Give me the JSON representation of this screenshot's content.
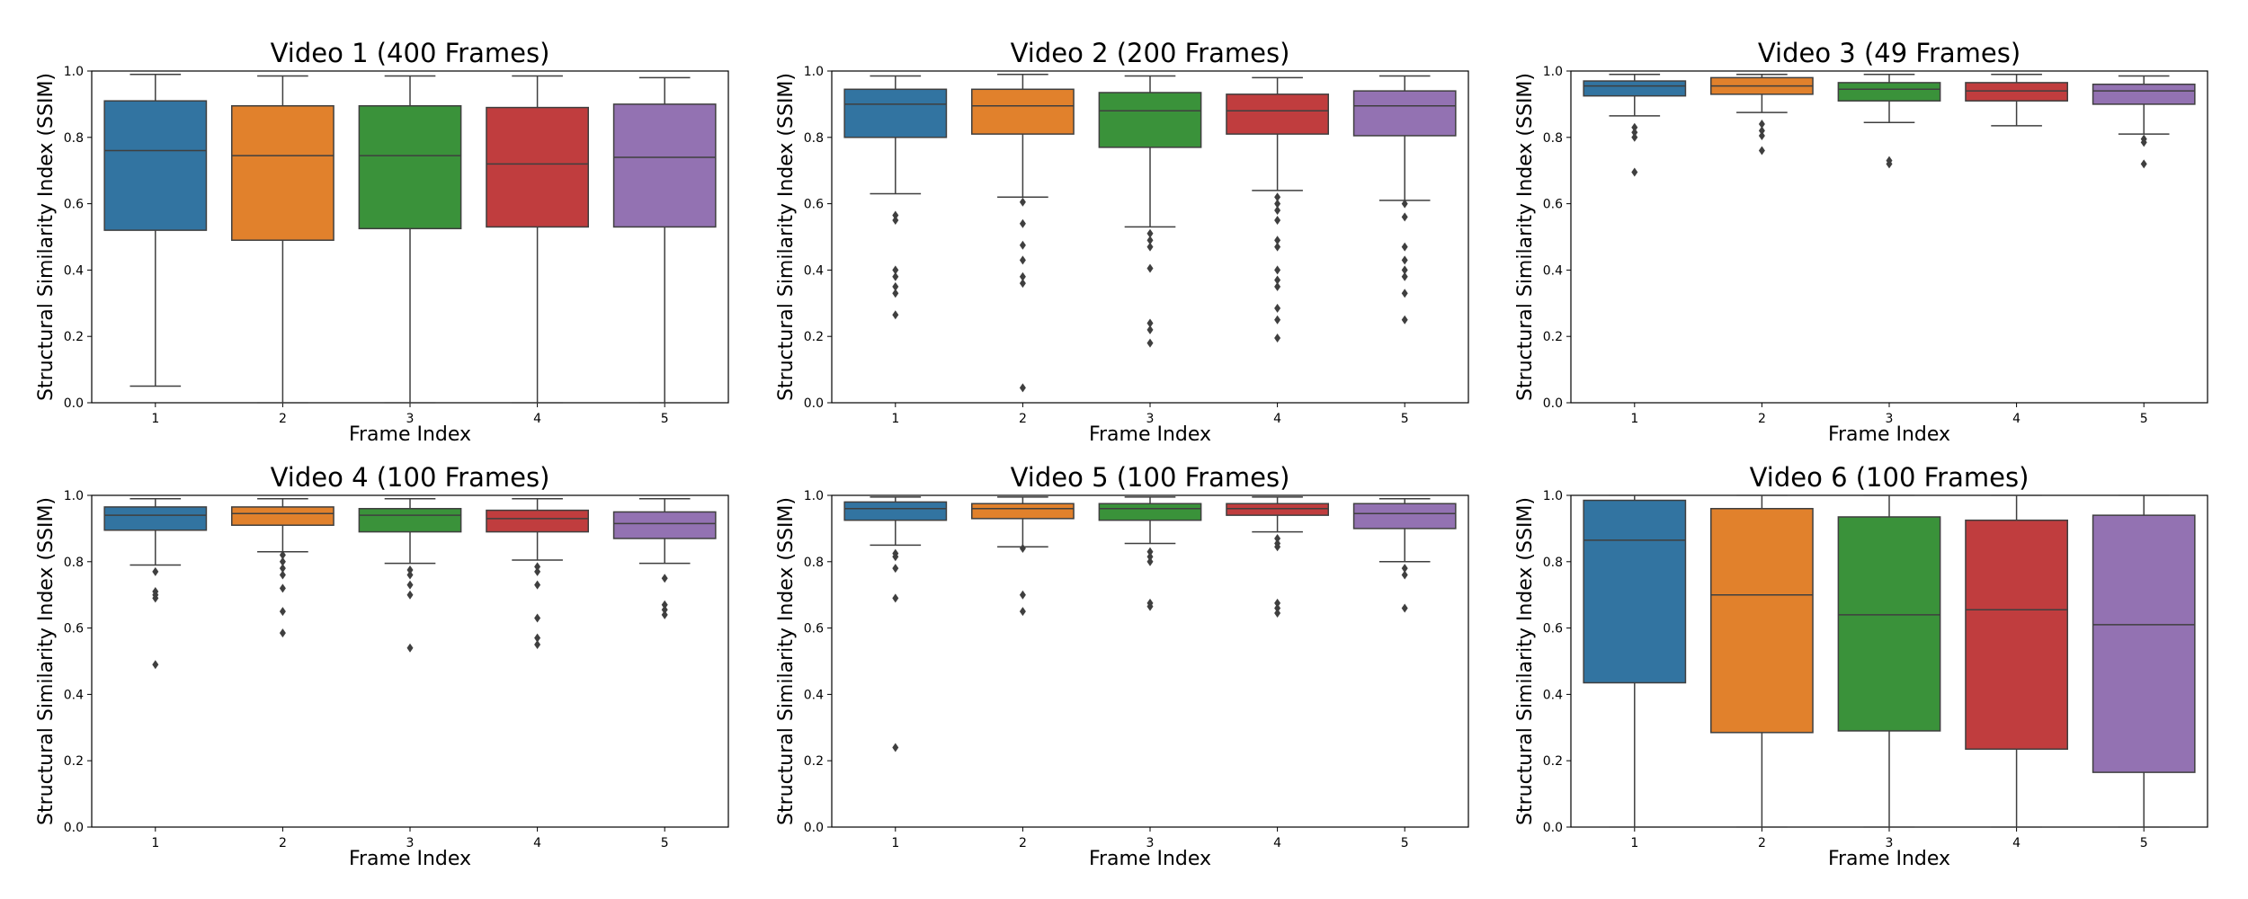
{
  "chart_data": [
    {
      "type": "box",
      "title": "Video 1 (400 Frames)",
      "xlabel": "Frame Index",
      "ylabel": "Structural Similarity Index (SSIM)",
      "categories": [
        "1",
        "2",
        "3",
        "4",
        "5"
      ],
      "ylim": [
        0.0,
        1.0
      ],
      "yticks": [
        "0.0",
        "0.2",
        "0.4",
        "0.6",
        "0.8",
        "1.0"
      ],
      "boxes": [
        {
          "whislo": 0.05,
          "q1": 0.52,
          "med": 0.76,
          "q3": 0.91,
          "whishi": 0.99,
          "fliers": []
        },
        {
          "whislo": 0.0,
          "q1": 0.49,
          "med": 0.745,
          "q3": 0.895,
          "whishi": 0.985,
          "fliers": []
        },
        {
          "whislo": 0.0,
          "q1": 0.525,
          "med": 0.745,
          "q3": 0.895,
          "whishi": 0.985,
          "fliers": []
        },
        {
          "whislo": 0.0,
          "q1": 0.53,
          "med": 0.72,
          "q3": 0.89,
          "whishi": 0.985,
          "fliers": []
        },
        {
          "whislo": 0.0,
          "q1": 0.53,
          "med": 0.74,
          "q3": 0.9,
          "whishi": 0.98,
          "fliers": []
        }
      ]
    },
    {
      "type": "box",
      "title": "Video 2 (200 Frames)",
      "xlabel": "Frame Index",
      "ylabel": "Structural Similarity Index (SSIM)",
      "categories": [
        "1",
        "2",
        "3",
        "4",
        "5"
      ],
      "ylim": [
        0.0,
        1.0
      ],
      "yticks": [
        "0.0",
        "0.2",
        "0.4",
        "0.6",
        "0.8",
        "1.0"
      ],
      "boxes": [
        {
          "whislo": 0.63,
          "q1": 0.8,
          "med": 0.9,
          "q3": 0.945,
          "whishi": 0.985,
          "fliers": [
            0.565,
            0.55,
            0.4,
            0.38,
            0.35,
            0.33,
            0.265
          ]
        },
        {
          "whislo": 0.62,
          "q1": 0.81,
          "med": 0.895,
          "q3": 0.945,
          "whishi": 0.99,
          "fliers": [
            0.605,
            0.54,
            0.475,
            0.43,
            0.38,
            0.36,
            0.045
          ]
        },
        {
          "whislo": 0.53,
          "q1": 0.77,
          "med": 0.88,
          "q3": 0.935,
          "whishi": 0.985,
          "fliers": [
            0.51,
            0.49,
            0.47,
            0.405,
            0.24,
            0.22,
            0.18
          ]
        },
        {
          "whislo": 0.64,
          "q1": 0.81,
          "med": 0.88,
          "q3": 0.93,
          "whishi": 0.98,
          "fliers": [
            0.62,
            0.6,
            0.58,
            0.55,
            0.49,
            0.47,
            0.4,
            0.37,
            0.35,
            0.285,
            0.25,
            0.195
          ]
        },
        {
          "whislo": 0.61,
          "q1": 0.805,
          "med": 0.895,
          "q3": 0.94,
          "whishi": 0.985,
          "fliers": [
            0.6,
            0.56,
            0.47,
            0.43,
            0.4,
            0.38,
            0.33,
            0.25
          ]
        }
      ]
    },
    {
      "type": "box",
      "title": "Video 3 (49 Frames)",
      "xlabel": "Frame Index",
      "ylabel": "Structural Similarity Index (SSIM)",
      "categories": [
        "1",
        "2",
        "3",
        "4",
        "5"
      ],
      "ylim": [
        0.0,
        1.0
      ],
      "yticks": [
        "0.0",
        "0.2",
        "0.4",
        "0.6",
        "0.8",
        "1.0"
      ],
      "boxes": [
        {
          "whislo": 0.865,
          "q1": 0.925,
          "med": 0.955,
          "q3": 0.97,
          "whishi": 0.99,
          "fliers": [
            0.83,
            0.815,
            0.8,
            0.695
          ]
        },
        {
          "whislo": 0.875,
          "q1": 0.93,
          "med": 0.955,
          "q3": 0.98,
          "whishi": 0.99,
          "fliers": [
            0.84,
            0.82,
            0.805,
            0.76
          ]
        },
        {
          "whislo": 0.845,
          "q1": 0.91,
          "med": 0.945,
          "q3": 0.965,
          "whishi": 0.99,
          "fliers": [
            0.73,
            0.72
          ]
        },
        {
          "whislo": 0.835,
          "q1": 0.91,
          "med": 0.94,
          "q3": 0.965,
          "whishi": 0.99,
          "fliers": []
        },
        {
          "whislo": 0.81,
          "q1": 0.9,
          "med": 0.94,
          "q3": 0.96,
          "whishi": 0.985,
          "fliers": [
            0.795,
            0.785,
            0.72
          ]
        }
      ]
    },
    {
      "type": "box",
      "title": "Video 4 (100 Frames)",
      "xlabel": "Frame Index",
      "ylabel": "Structural Similarity Index (SSIM)",
      "categories": [
        "1",
        "2",
        "3",
        "4",
        "5"
      ],
      "ylim": [
        0.0,
        1.0
      ],
      "yticks": [
        "0.0",
        "0.2",
        "0.4",
        "0.6",
        "0.8",
        "1.0"
      ],
      "boxes": [
        {
          "whislo": 0.79,
          "q1": 0.895,
          "med": 0.94,
          "q3": 0.965,
          "whishi": 0.99,
          "fliers": [
            0.77,
            0.71,
            0.7,
            0.69,
            0.49
          ]
        },
        {
          "whislo": 0.83,
          "q1": 0.91,
          "med": 0.945,
          "q3": 0.965,
          "whishi": 0.99,
          "fliers": [
            0.82,
            0.8,
            0.78,
            0.76,
            0.72,
            0.65,
            0.585
          ]
        },
        {
          "whislo": 0.795,
          "q1": 0.89,
          "med": 0.94,
          "q3": 0.96,
          "whishi": 0.99,
          "fliers": [
            0.775,
            0.76,
            0.73,
            0.7,
            0.54
          ]
        },
        {
          "whislo": 0.805,
          "q1": 0.89,
          "med": 0.93,
          "q3": 0.955,
          "whishi": 0.99,
          "fliers": [
            0.785,
            0.77,
            0.73,
            0.63,
            0.57,
            0.55
          ]
        },
        {
          "whislo": 0.795,
          "q1": 0.87,
          "med": 0.915,
          "q3": 0.95,
          "whishi": 0.99,
          "fliers": [
            0.75,
            0.67,
            0.655,
            0.64
          ]
        }
      ]
    },
    {
      "type": "box",
      "title": "Video 5 (100 Frames)",
      "xlabel": "Frame Index",
      "ylabel": "Structural Similarity Index (SSIM)",
      "categories": [
        "1",
        "2",
        "3",
        "4",
        "5"
      ],
      "ylim": [
        0.0,
        1.0
      ],
      "yticks": [
        "0.0",
        "0.2",
        "0.4",
        "0.6",
        "0.8",
        "1.0"
      ],
      "boxes": [
        {
          "whislo": 0.85,
          "q1": 0.925,
          "med": 0.96,
          "q3": 0.98,
          "whishi": 0.995,
          "fliers": [
            0.825,
            0.815,
            0.78,
            0.69,
            0.24
          ]
        },
        {
          "whislo": 0.845,
          "q1": 0.93,
          "med": 0.96,
          "q3": 0.975,
          "whishi": 0.995,
          "fliers": [
            0.84,
            0.7,
            0.65
          ]
        },
        {
          "whislo": 0.855,
          "q1": 0.925,
          "med": 0.96,
          "q3": 0.975,
          "whishi": 0.995,
          "fliers": [
            0.83,
            0.815,
            0.8,
            0.675,
            0.665
          ]
        },
        {
          "whislo": 0.89,
          "q1": 0.94,
          "med": 0.96,
          "q3": 0.975,
          "whishi": 0.995,
          "fliers": [
            0.87,
            0.855,
            0.845,
            0.675,
            0.66,
            0.645
          ]
        },
        {
          "whislo": 0.8,
          "q1": 0.9,
          "med": 0.945,
          "q3": 0.975,
          "whishi": 0.99,
          "fliers": [
            0.78,
            0.76,
            0.66
          ]
        }
      ]
    },
    {
      "type": "box",
      "title": "Video 6 (100 Frames)",
      "xlabel": "Frame Index",
      "ylabel": "Structural Similarity Index (SSIM)",
      "categories": [
        "1",
        "2",
        "3",
        "4",
        "5"
      ],
      "ylim": [
        0.0,
        1.0
      ],
      "yticks": [
        "0.0",
        "0.2",
        "0.4",
        "0.6",
        "0.8",
        "1.0"
      ],
      "boxes": [
        {
          "whislo": 0.0,
          "q1": 0.435,
          "med": 0.865,
          "q3": 0.985,
          "whishi": 1.0,
          "fliers": []
        },
        {
          "whislo": 0.0,
          "q1": 0.285,
          "med": 0.7,
          "q3": 0.96,
          "whishi": 1.0,
          "fliers": []
        },
        {
          "whislo": 0.0,
          "q1": 0.29,
          "med": 0.64,
          "q3": 0.935,
          "whishi": 1.0,
          "fliers": []
        },
        {
          "whislo": 0.0,
          "q1": 0.235,
          "med": 0.655,
          "q3": 0.925,
          "whishi": 1.0,
          "fliers": []
        },
        {
          "whislo": 0.0,
          "q1": 0.165,
          "med": 0.61,
          "q3": 0.94,
          "whishi": 1.0,
          "fliers": []
        }
      ]
    }
  ],
  "colors": {
    "palette": [
      "#3274a1",
      "#e1812c",
      "#3a923a",
      "#c03d3e",
      "#9372b2"
    ],
    "line": "#3f3f3f",
    "axes": "#000000",
    "background": "#ffffff"
  }
}
